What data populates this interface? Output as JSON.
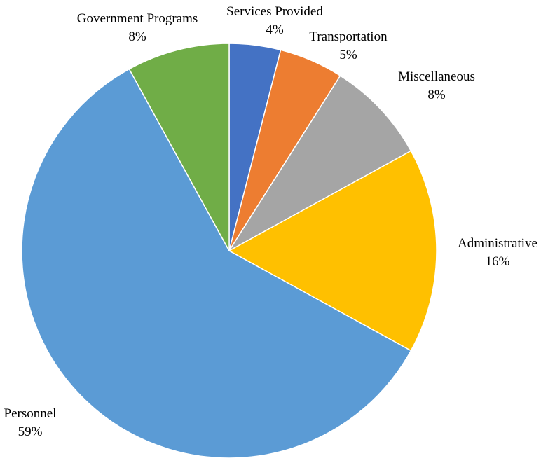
{
  "chart_data": {
    "type": "pie",
    "start_angle_deg": 0,
    "direction": "clockwise",
    "slices": [
      {
        "label": "Services Provided",
        "value": 4,
        "value_label": "4%",
        "color": "#4472C4"
      },
      {
        "label": "Transportation",
        "value": 5,
        "value_label": "5%",
        "color": "#ED7D31"
      },
      {
        "label": "Miscellaneous",
        "value": 8,
        "value_label": "8%",
        "color": "#A5A5A5"
      },
      {
        "label": "Administrative",
        "value": 16,
        "value_label": "16%",
        "color": "#FFC000"
      },
      {
        "label": "Personnel",
        "value": 59,
        "value_label": "59%",
        "color": "#5B9BD5"
      },
      {
        "label": "Government Programs",
        "value": 8,
        "value_label": "8%",
        "color": "#70AD47"
      }
    ]
  }
}
